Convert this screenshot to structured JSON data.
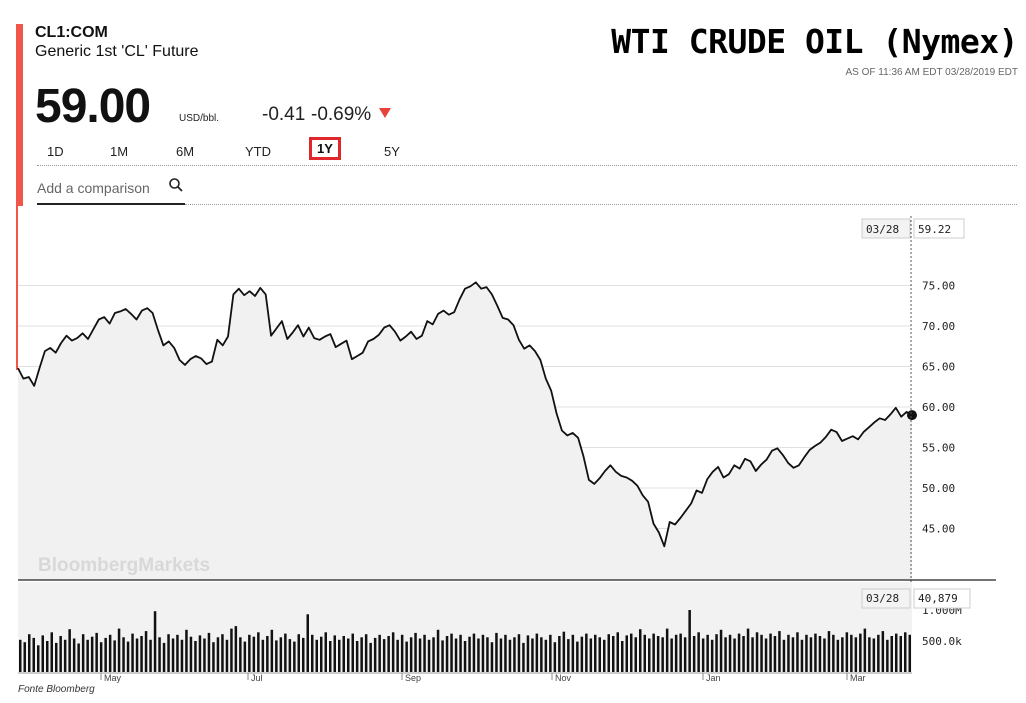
{
  "header": {
    "ticker": "CL1:COM",
    "subtitle": "Generic 1st 'CL' Future",
    "headline": "WTI CRUDE OIL (Nymex)",
    "as_of": "AS OF 11:36 AM EDT 03/28/2019 EDT",
    "price": "59.00",
    "unit": "USD/bbl.",
    "change": "-0.41",
    "change_pct": "-0.69%"
  },
  "ranges": [
    "1D",
    "1M",
    "6M",
    "YTD",
    "1Y",
    "5Y"
  ],
  "selected_range": "1Y",
  "search": {
    "placeholder": "Add a comparison"
  },
  "source": "Fonte Bloomberg",
  "colors": {
    "accent": "#f0564a",
    "down": "#e8423a",
    "highlight": "#e0282c",
    "line": "#111111",
    "area": "#f2f2f2"
  },
  "chart_data": {
    "type": "line",
    "watermark": "BloombergMarkets",
    "price_chart": {
      "ylim": [
        40,
        80
      ],
      "y_ticks": [
        "75.00",
        "70.00",
        "65.00",
        "60.00",
        "55.00",
        "50.00",
        "45.00"
      ],
      "crosshair_date": "03/28",
      "crosshair_value": "59.22",
      "x_month_labels": [
        "May",
        "Jul",
        "Sep",
        "Nov",
        "Jan",
        "Mar"
      ],
      "series": [
        {
          "values": [
            64.8,
            63.5,
            63.7,
            62.6,
            64.8,
            66.9,
            67.3,
            66.7,
            67.9,
            68.8,
            68.2,
            68.5,
            69.1,
            68.4,
            69.6,
            70.8,
            71.1,
            70.3,
            71.6,
            71.8,
            72.1,
            71.5,
            70.8,
            71.9,
            72.2,
            71.6,
            69.5,
            67.6,
            68.1,
            67.3,
            65.8,
            65.2,
            65.9,
            66.3,
            66.0,
            65.3,
            65.6,
            68.3,
            67.6,
            68.7,
            73.9,
            74.6,
            73.8,
            74.3,
            73.7,
            74.7,
            73.9,
            68.8,
            69.7,
            70.6,
            68.4,
            69.2,
            70.1,
            68.7,
            69.8,
            68.5,
            68.3,
            68.7,
            69.0,
            67.4,
            67.8,
            68.2,
            65.9,
            66.3,
            66.7,
            68.1,
            68.4,
            68.9,
            69.8,
            70.1,
            69.3,
            68.2,
            68.7,
            69.3,
            68.4,
            68.8,
            70.6,
            70.2,
            71.5,
            71.9,
            71.4,
            71.7,
            73.3,
            74.6,
            74.9,
            75.4,
            74.6,
            74.8,
            73.9,
            72.5,
            71.0,
            70.8,
            70.1,
            68.3,
            67.2,
            67.6,
            66.9,
            65.8,
            63.5,
            62.0,
            59.2,
            57.1,
            56.5,
            56.8,
            56.2,
            53.9,
            51.0,
            50.5,
            51.2,
            52.1,
            52.8,
            52.0,
            51.5,
            51.3,
            50.9,
            50.3,
            49.1,
            48.3,
            45.6,
            44.5,
            42.8,
            45.8,
            45.5,
            46.3,
            47.2,
            48.1,
            49.7,
            49.4,
            51.1,
            52.0,
            52.6,
            51.3,
            51.7,
            52.8,
            52.4,
            53.6,
            53.3,
            52.1,
            52.9,
            53.5,
            54.6,
            54.9,
            54.1,
            53.1,
            52.5,
            52.8,
            53.8,
            54.7,
            55.2,
            55.6,
            56.3,
            57.2,
            56.9,
            55.8,
            56.1,
            56.4,
            56.0,
            56.9,
            57.5,
            58.1,
            58.6,
            58.4,
            59.1,
            59.9,
            58.8,
            59.4,
            59.0
          ]
        }
      ]
    },
    "volume_chart": {
      "crosshair_date": "03/28",
      "crosshair_value": "40,879",
      "y_ticks": [
        "1.000M",
        "500.0k"
      ],
      "values": [
        520,
        480,
        610,
        550,
        430,
        590,
        500,
        640,
        470,
        580,
        520,
        690,
        540,
        460,
        610,
        520,
        570,
        630,
        480,
        550,
        600,
        510,
        700,
        560,
        490,
        620,
        540,
        580,
        660,
        520,
        980,
        560,
        470,
        610,
        540,
        600,
        520,
        680,
        570,
        500,
        590,
        540,
        630,
        480,
        560,
        610,
        520,
        700,
        740,
        560,
        490,
        600,
        570,
        640,
        520,
        580,
        680,
        510,
        560,
        620,
        530,
        490,
        610,
        550,
        930,
        600,
        520,
        570,
        640,
        500,
        590,
        520,
        580,
        540,
        620,
        500,
        560,
        610,
        470,
        550,
        600,
        530,
        580,
        640,
        520,
        600,
        490,
        560,
        630,
        540,
        600,
        520,
        560,
        680,
        510,
        580,
        620,
        540,
        600,
        500,
        570,
        620,
        540,
        600,
        560,
        480,
        630,
        540,
        600,
        520,
        560,
        610,
        470,
        590,
        540,
        620,
        560,
        520,
        600,
        480,
        580,
        650,
        530,
        600,
        490,
        570,
        620,
        540,
        600,
        560,
        520,
        610,
        580,
        640,
        500,
        590,
        620,
        560,
        690,
        600,
        540,
        620,
        580,
        560,
        700,
        540,
        600,
        620,
        560,
        1000,
        580,
        640,
        540,
        600,
        520,
        610,
        680,
        560,
        600,
        540,
        620,
        580,
        700,
        560,
        640,
        600,
        540,
        620,
        580,
        660,
        520,
        600,
        560,
        640,
        520,
        600,
        560,
        620,
        580,
        540,
        660,
        600,
        520,
        560,
        640,
        600,
        560,
        620,
        700,
        560,
        540,
        600,
        660,
        520,
        580,
        620,
        580,
        640,
        600
      ]
    }
  }
}
